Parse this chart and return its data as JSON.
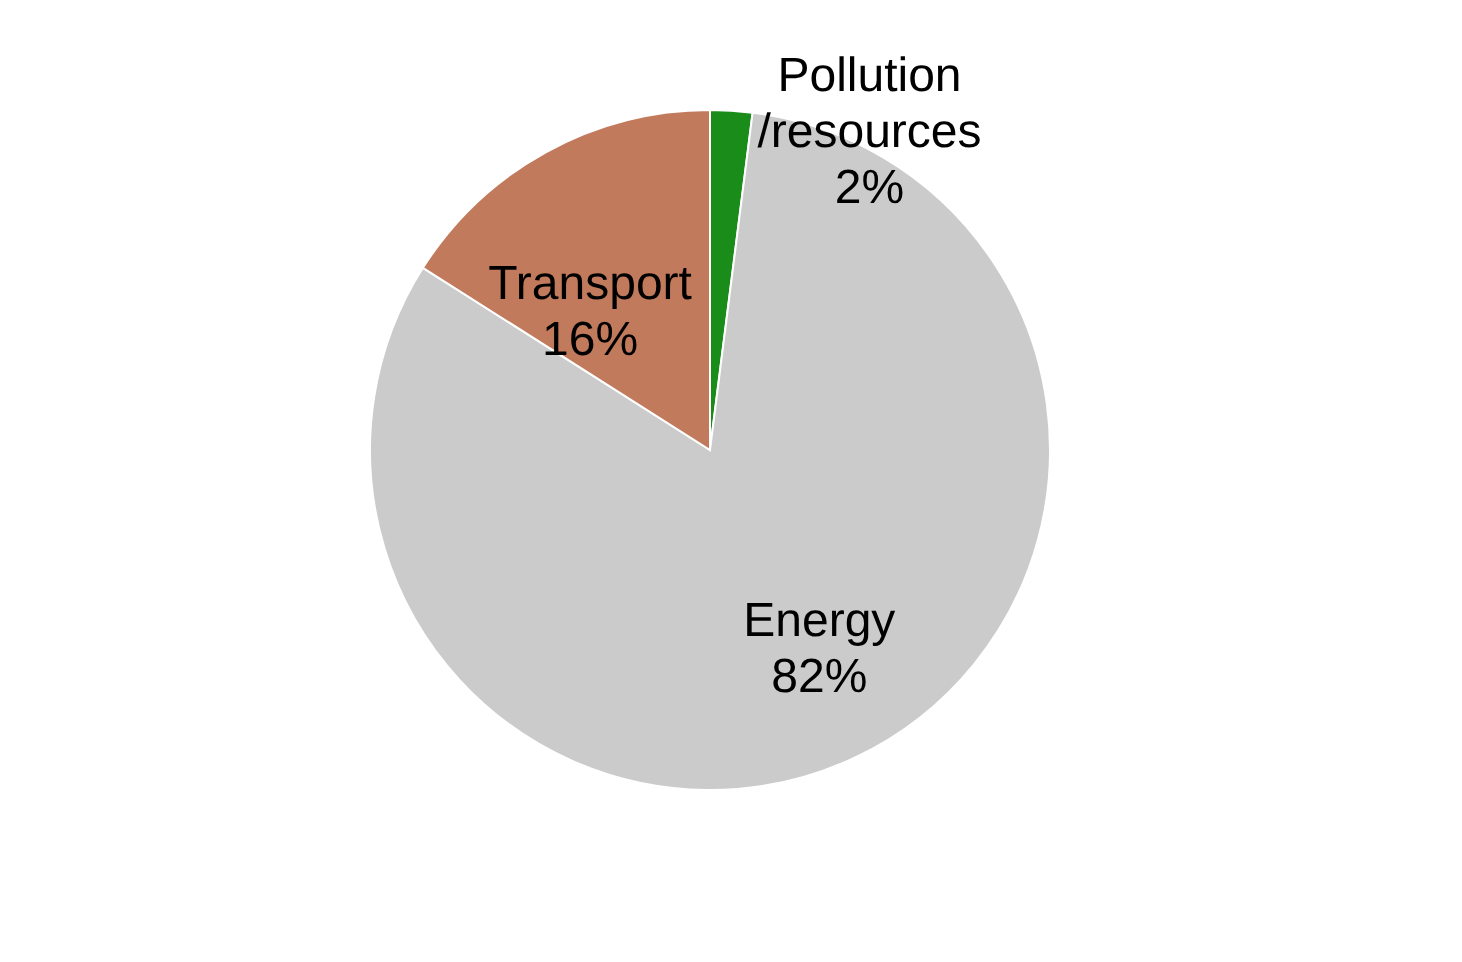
{
  "chart_data": {
    "type": "pie",
    "categories": [
      "Pollution /resources",
      "Energy",
      "Transport"
    ],
    "values": [
      2,
      82,
      16
    ],
    "colors": [
      "#1a8c1a",
      "#cbcbcb",
      "#c27a5c"
    ],
    "value_labels": [
      "2%",
      "82%",
      "16%"
    ]
  }
}
